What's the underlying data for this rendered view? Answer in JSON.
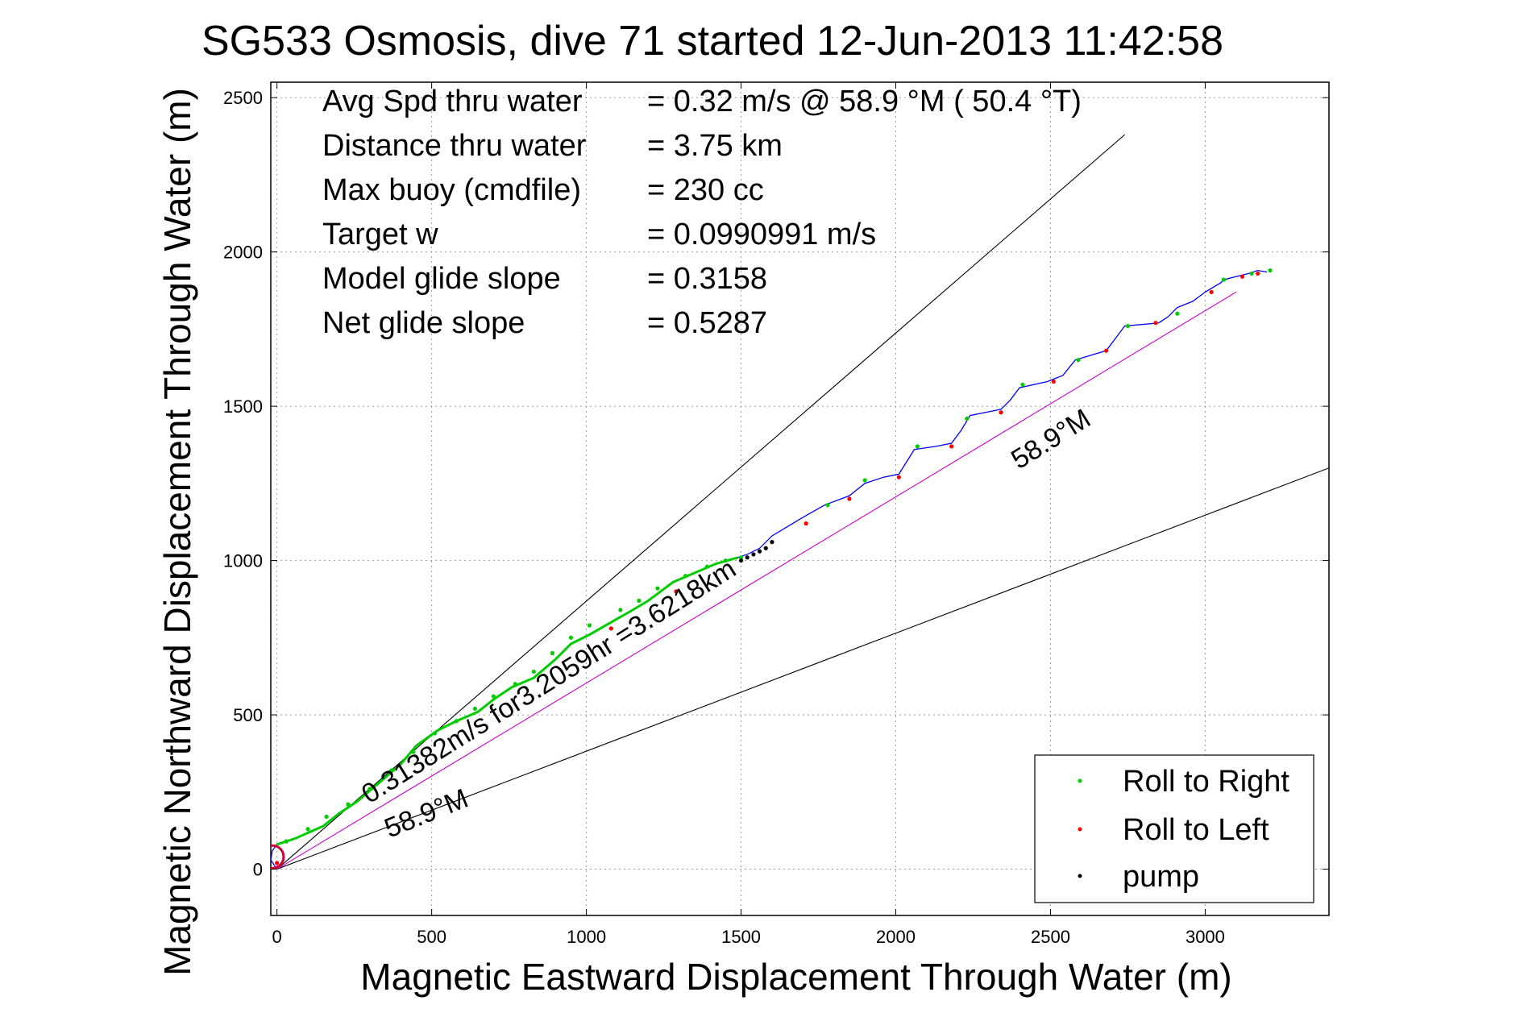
{
  "chart_data": {
    "type": "line",
    "title": "SG533 Osmosis, dive 71 started 12-Jun-2013 11:42:58",
    "xlabel": "Magnetic Eastward Displacement Through Water (m)",
    "ylabel": "Magnetic Northward Displacement Through Water (m)",
    "xlim": [
      -20,
      3400
    ],
    "ylim": [
      -150,
      2550
    ],
    "xticks": [
      0,
      500,
      1000,
      1500,
      2000,
      2500,
      3000
    ],
    "yticks": [
      0,
      500,
      1000,
      1500,
      2000,
      2500
    ],
    "xtick_labels": [
      "0",
      "500",
      "1000",
      "1500",
      "2000",
      "2500",
      "3000"
    ],
    "ytick_labels": [
      "0",
      "500",
      "1000",
      "1500",
      "2000",
      "2500"
    ],
    "grid": true,
    "legend_position": "bottom-right",
    "info_lines": [
      {
        "label": "Avg Spd thru water",
        "value": "=  0.32 m/s @  58.9 °M ( 50.4 °T)"
      },
      {
        "label": "Distance thru water",
        "value": "=  3.75 km"
      },
      {
        "label": "Max buoy (cmdfile)",
        "value": "= 230 cc"
      },
      {
        "label": "Target w",
        "value": "= 0.0990991 m/s"
      },
      {
        "label": "Model glide slope",
        "value": "= 0.3158"
      },
      {
        "label": "Net glide slope",
        "value": "= 0.5287"
      }
    ],
    "annotations": {
      "segment_label": "0.31382m/s for3.2059hr =3.6218km",
      "heading_label_upper": "58.9°M",
      "heading_label_lower": "58.9°M"
    },
    "reference_lines": [
      {
        "name": "upper-bound",
        "x": [
          0,
          2740
        ],
        "y": [
          0,
          2380
        ],
        "color": "#000000"
      },
      {
        "name": "lower-bound",
        "x": [
          0,
          3400
        ],
        "y": [
          0,
          1300
        ],
        "color": "#000000"
      },
      {
        "name": "heading-line",
        "x": [
          0,
          3100
        ],
        "y": [
          0,
          1870
        ],
        "color": "#cc00cc"
      }
    ],
    "track": {
      "color": "#0000ff",
      "x": [
        0,
        -20,
        -15,
        0,
        60,
        150,
        200,
        260,
        330,
        400,
        450,
        520,
        580,
        650,
        700,
        760,
        830,
        900,
        950,
        1010,
        1080,
        1150,
        1200,
        1280,
        1350,
        1420,
        1490,
        1520,
        1560,
        1600,
        1650,
        1700,
        1770,
        1850,
        1900,
        1960,
        2010,
        2060,
        2130,
        2180,
        2210,
        2240,
        2340,
        2370,
        2400,
        2490,
        2540,
        2580,
        2680,
        2710,
        2740,
        2850,
        2880,
        2910,
        2960,
        3000,
        3050,
        3060,
        3100,
        3140,
        3170,
        3200
      ],
      "y": [
        0,
        30,
        60,
        80,
        100,
        140,
        180,
        220,
        280,
        340,
        400,
        450,
        480,
        510,
        550,
        590,
        620,
        680,
        730,
        760,
        800,
        840,
        870,
        930,
        960,
        990,
        1010,
        1020,
        1040,
        1080,
        1110,
        1140,
        1180,
        1210,
        1250,
        1270,
        1280,
        1360,
        1370,
        1380,
        1420,
        1470,
        1490,
        1520,
        1560,
        1580,
        1600,
        1650,
        1680,
        1720,
        1760,
        1770,
        1790,
        1820,
        1840,
        1870,
        1900,
        1910,
        1920,
        1930,
        1940,
        1935
      ]
    },
    "roll_right_points": {
      "name": "Roll to Right",
      "color": "#00cc00",
      "x": [
        30,
        100,
        160,
        230,
        300,
        370,
        440,
        510,
        580,
        640,
        700,
        770,
        830,
        890,
        950,
        1010,
        1110,
        1170,
        1230,
        1320,
        1390,
        1450,
        1500,
        1780,
        1900,
        2070,
        2230,
        2410,
        2590,
        2750,
        2910,
        3060,
        3150,
        3210
      ],
      "y": [
        90,
        130,
        170,
        210,
        260,
        320,
        380,
        440,
        480,
        520,
        560,
        600,
        640,
        700,
        750,
        790,
        840,
        870,
        910,
        950,
        980,
        1000,
        1010,
        1180,
        1260,
        1370,
        1460,
        1570,
        1650,
        1760,
        1800,
        1910,
        1930,
        1940
      ]
    },
    "roll_left_points": {
      "name": "Roll to Left",
      "color": "#ff0000",
      "x": [
        0,
        1080,
        1290,
        1710,
        1850,
        2010,
        2180,
        2340,
        2510,
        2680,
        2840,
        3020,
        3120,
        3170
      ],
      "y": [
        20,
        780,
        900,
        1120,
        1200,
        1270,
        1370,
        1480,
        1580,
        1680,
        1770,
        1870,
        1920,
        1930
      ]
    },
    "pump_points": {
      "name": "pump",
      "color": "#000000",
      "x": [
        1500,
        1520,
        1540,
        1560,
        1580,
        1600
      ],
      "y": [
        1000,
        1010,
        1020,
        1030,
        1040,
        1060
      ]
    },
    "legend": [
      "Roll to Right",
      "Roll to Left",
      "pump"
    ]
  }
}
